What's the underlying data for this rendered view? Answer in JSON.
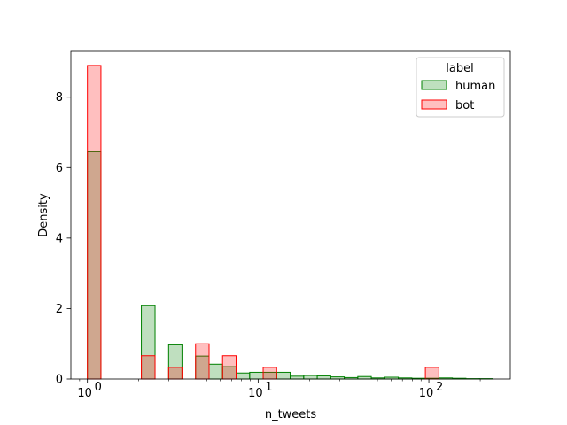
{
  "chart_data": {
    "type": "bar",
    "subtype": "histogram",
    "title": "",
    "xlabel": "n_tweets",
    "ylabel": "Density",
    "x_scale": "log",
    "xlim": [
      0.8,
      300
    ],
    "ylim": [
      0,
      9.3
    ],
    "x_ticks": [
      {
        "value": 1,
        "label": "10",
        "exp": "0"
      },
      {
        "value": 10,
        "label": "10",
        "exp": "1"
      },
      {
        "value": 100,
        "label": "10",
        "exp": "2"
      }
    ],
    "y_ticks": [
      {
        "value": 0,
        "label": "0"
      },
      {
        "value": 2,
        "label": "2"
      },
      {
        "value": 4,
        "label": "4"
      },
      {
        "value": 6,
        "label": "6"
      },
      {
        "value": 8,
        "label": "8"
      }
    ],
    "bin_edges": [
      1.0,
      1.2,
      1.44,
      1.73,
      2.07,
      2.49,
      2.99,
      3.58,
      4.3,
      5.16,
      6.19,
      7.43,
      8.92,
      10.7,
      12.84,
      15.41,
      18.49,
      22.19,
      26.62,
      31.95,
      38.34,
      46.0,
      55.2,
      66.24,
      79.49,
      95.39,
      114.47,
      137.36,
      164.84,
      197.8,
      237.37
    ],
    "series": [
      {
        "name": "human",
        "color": "#008000",
        "fill": "#bfe0bf",
        "values": [
          6.45,
          0,
          0,
          0,
          2.08,
          0,
          0.97,
          0,
          0.65,
          0.42,
          0.35,
          0.17,
          0.19,
          0.19,
          0.19,
          0.08,
          0.1,
          0.09,
          0.06,
          0.04,
          0.07,
          0.03,
          0.05,
          0.03,
          0.02,
          0.02,
          0.03,
          0.02,
          0.01,
          0.01
        ]
      },
      {
        "name": "bot",
        "color": "#ff0000",
        "fill": "#ffbfbf",
        "values": [
          8.9,
          0,
          0,
          0,
          0.66,
          0,
          0.33,
          0,
          1.0,
          0,
          0.66,
          0,
          0,
          0.33,
          0,
          0,
          0,
          0,
          0,
          0,
          0,
          0,
          0,
          0,
          0,
          0.33,
          0,
          0,
          0,
          0
        ]
      }
    ],
    "legend": {
      "title": "label",
      "entries": [
        "human",
        "bot"
      ],
      "placement": "top-right"
    }
  }
}
